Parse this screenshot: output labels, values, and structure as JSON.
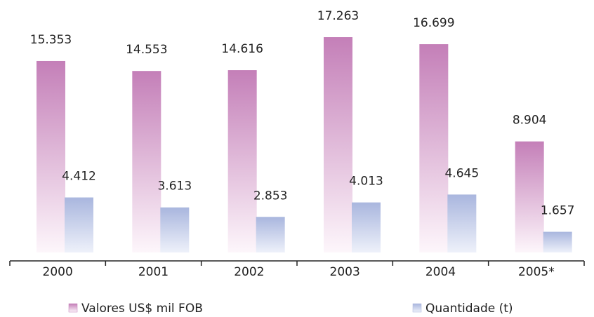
{
  "chart_data": {
    "type": "bar",
    "categories": [
      "2000",
      "2001",
      "2002",
      "2003",
      "2004",
      "2005*"
    ],
    "series": [
      {
        "name": "Valores US$ mil FOB",
        "color": "#c47fb8",
        "values": [
          15353,
          14553,
          14616,
          17263,
          16699,
          8904
        ],
        "value_labels": [
          "15.353",
          "14.553",
          "14.616",
          "17.263",
          "16.699",
          "8.904"
        ]
      },
      {
        "name": "Quantidade (t)",
        "color": "#a9b6de",
        "values": [
          4412,
          3613,
          2853,
          4013,
          4645,
          1657
        ],
        "value_labels": [
          "4.412",
          "3.613",
          "2.853",
          "4.013",
          "4.645",
          "1.657"
        ]
      }
    ]
  }
}
